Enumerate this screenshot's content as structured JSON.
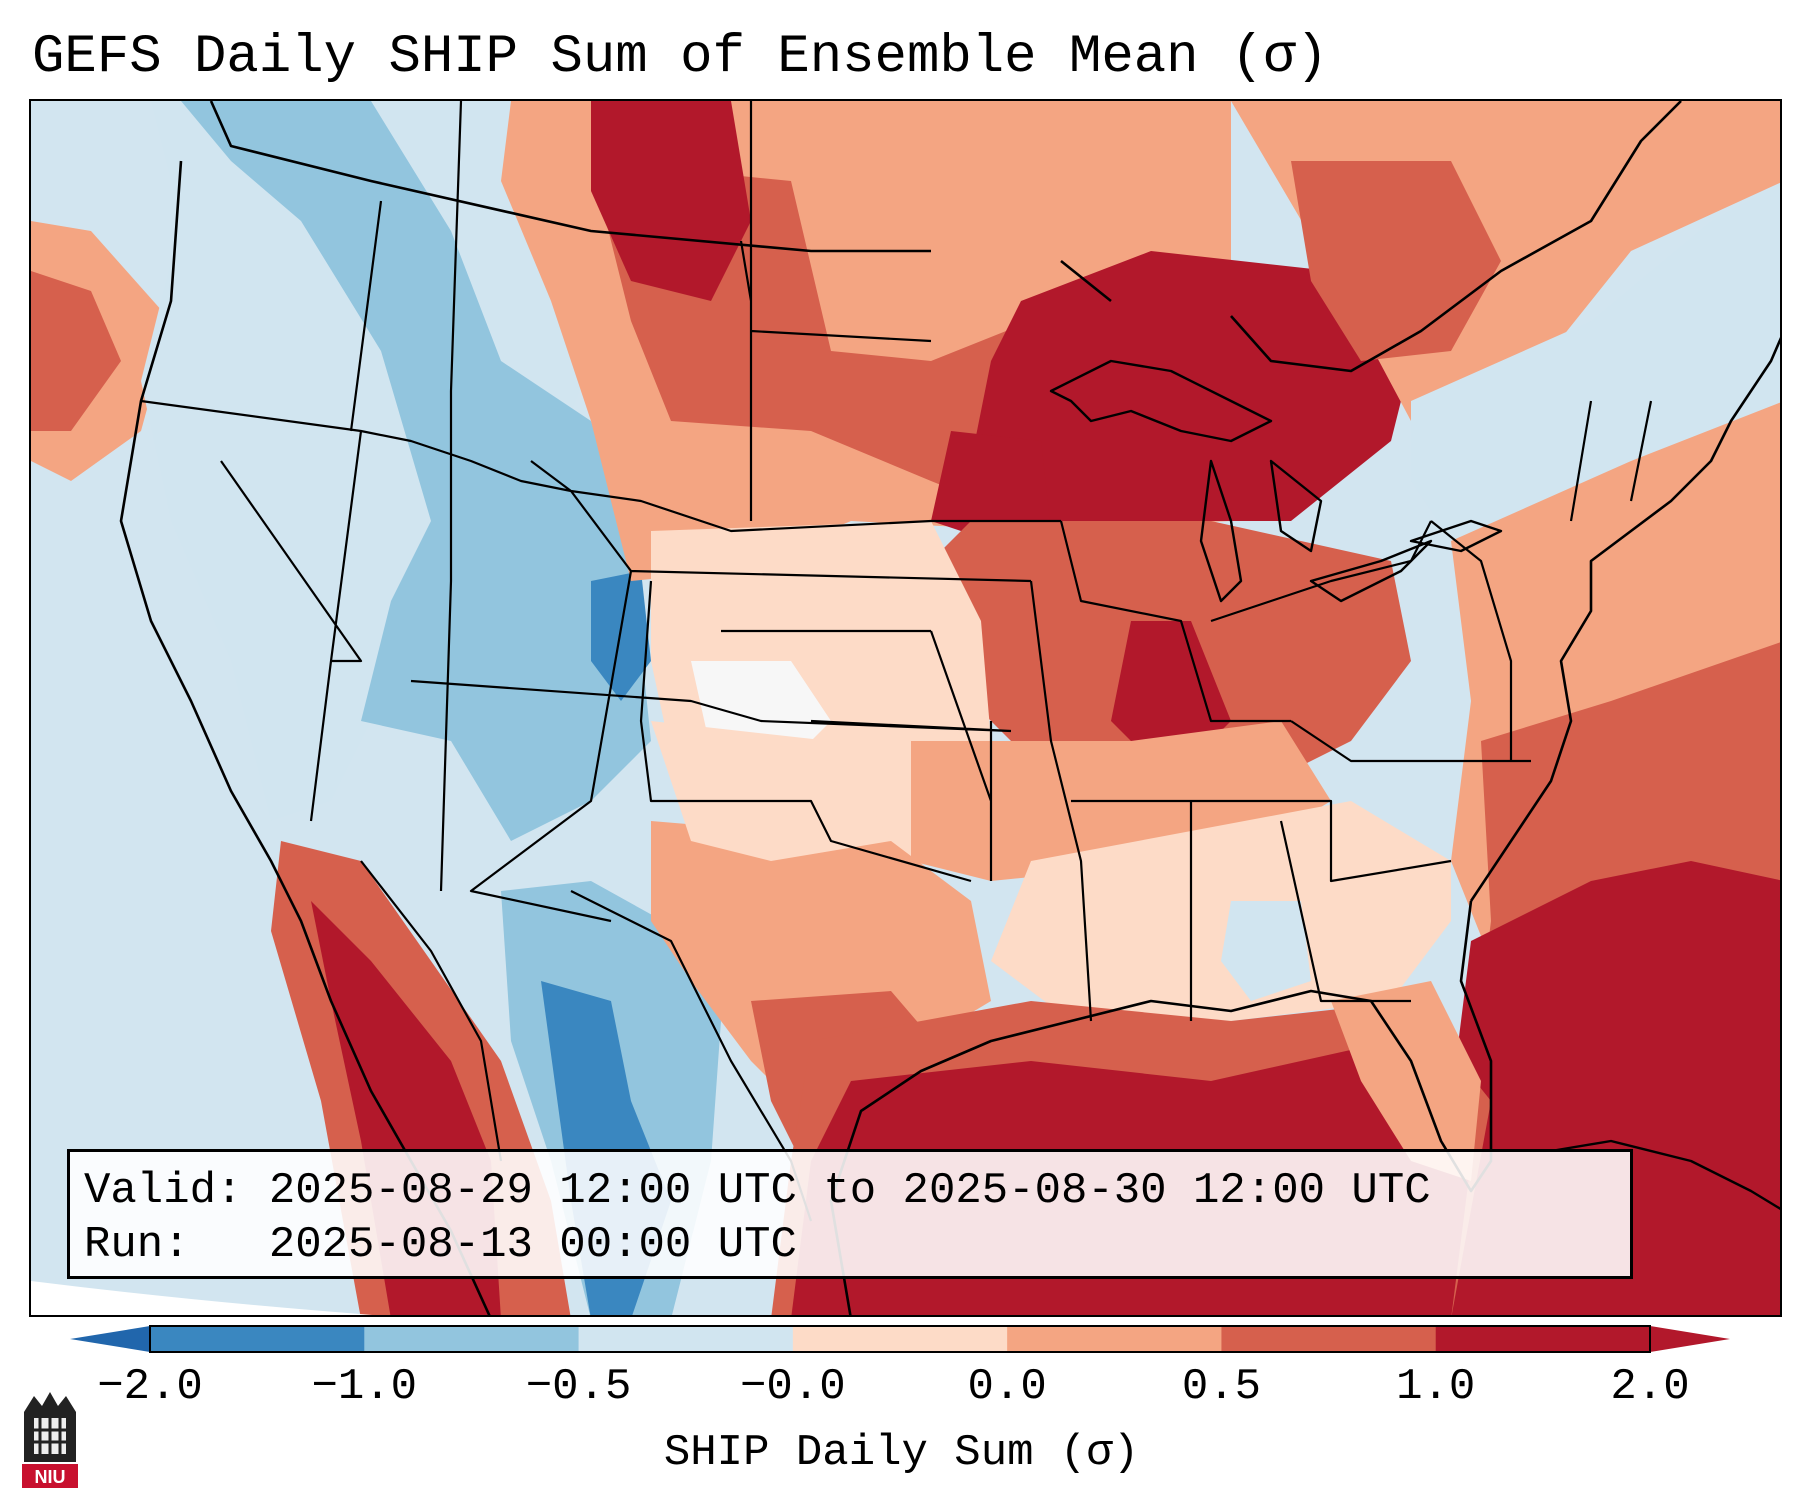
{
  "title": "GEFS Daily SHIP Sum of Ensemble Mean (σ)",
  "info": {
    "valid_label": "Valid:",
    "valid_value": "2025-08-29 12:00 UTC to 2025-08-30 12:00 UTC",
    "run_label": "Run:",
    "run_value": "2025-08-13 00:00 UTC"
  },
  "colorbar": {
    "label": "SHIP Daily Sum (σ)",
    "ticks": [
      "−2.0",
      "−1.0",
      "−0.5",
      "−0.0",
      "0.0",
      "0.5",
      "1.0",
      "2.0"
    ],
    "colors": [
      "#3a87c0",
      "#92c5de",
      "#d1e5f0",
      "#f7f7f7",
      "#fddbc7",
      "#f4a582",
      "#d6604d",
      "#b2182b"
    ],
    "extend_low_color": "#2166ac",
    "extend_high_color": "#b2182b"
  },
  "map": {
    "ocean_color": "#d2e5f0",
    "region_fields": [
      {
        "name": "pacific-northwest-anomaly",
        "level": 6
      },
      {
        "name": "northwest-interior",
        "level": 2
      },
      {
        "name": "rockies-negative",
        "level": 1
      },
      {
        "name": "mexico-sierra-negative",
        "level": 0
      },
      {
        "name": "northern-plains",
        "level": 6
      },
      {
        "name": "great-lakes",
        "level": 7
      },
      {
        "name": "ohio-valley",
        "level": 6
      },
      {
        "name": "central-plains",
        "level": 4
      },
      {
        "name": "texas",
        "level": 5
      },
      {
        "name": "southeast",
        "level": 4
      },
      {
        "name": "atlantic",
        "level": 6
      },
      {
        "name": "gulf-of-mexico",
        "level": 7
      },
      {
        "name": "canada-east",
        "level": 5
      }
    ]
  },
  "logo": {
    "text": "NIU"
  }
}
